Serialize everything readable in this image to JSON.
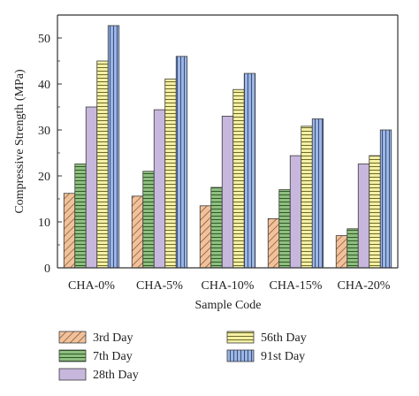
{
  "chart_data": {
    "type": "bar",
    "xlabel": "Sample Code",
    "ylabel": "Compressive Strength (MPa)",
    "categories": [
      "CHA-0%",
      "CHA-5%",
      "CHA-10%",
      "CHA-15%",
      "CHA-20%"
    ],
    "ylim": [
      0,
      55
    ],
    "yticks": [
      0,
      10,
      20,
      30,
      40,
      50
    ],
    "grid": false,
    "legend_position": "bottom",
    "series": [
      {
        "name": "3rd Day",
        "values": [
          16.2,
          15.6,
          13.5,
          10.7,
          7.0
        ],
        "color": "#f2c19a",
        "pattern": "diagonal-hatch"
      },
      {
        "name": "7th Day",
        "values": [
          22.6,
          21.0,
          17.5,
          17.0,
          8.5
        ],
        "color": "#8fbf7f",
        "pattern": "horizontal-lines"
      },
      {
        "name": "28th Day",
        "values": [
          35.0,
          34.4,
          33.0,
          24.4,
          22.6
        ],
        "color": "#c7b7dd",
        "pattern": "solid"
      },
      {
        "name": "56th Day",
        "values": [
          45.0,
          41.1,
          38.8,
          30.8,
          24.4
        ],
        "color": "#f4f0a4",
        "pattern": "horizontal-lines"
      },
      {
        "name": "91st Day",
        "values": [
          52.7,
          46.0,
          42.3,
          32.4,
          30.0
        ],
        "color": "#9db5e0",
        "pattern": "vertical-lines"
      }
    ]
  }
}
